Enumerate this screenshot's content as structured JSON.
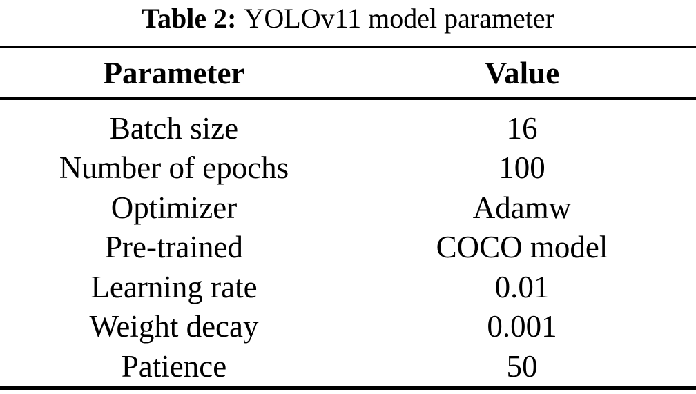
{
  "caption": {
    "label": "Table 2:",
    "text": "YOLOv11 model parameter"
  },
  "table": {
    "headers": {
      "parameter": "Parameter",
      "value": "Value"
    },
    "rows": [
      {
        "parameter": "Batch size",
        "value": "16"
      },
      {
        "parameter": "Number of epochs",
        "value": "100"
      },
      {
        "parameter": "Optimizer",
        "value": "Adamw"
      },
      {
        "parameter": "Pre-trained",
        "value": "COCO model"
      },
      {
        "parameter": "Learning rate",
        "value": "0.01"
      },
      {
        "parameter": "Weight decay",
        "value": "0.001"
      },
      {
        "parameter": "Patience",
        "value": "50"
      }
    ]
  },
  "colors": {
    "background": "#ffffff",
    "text": "#000000",
    "rule": "#000000"
  }
}
